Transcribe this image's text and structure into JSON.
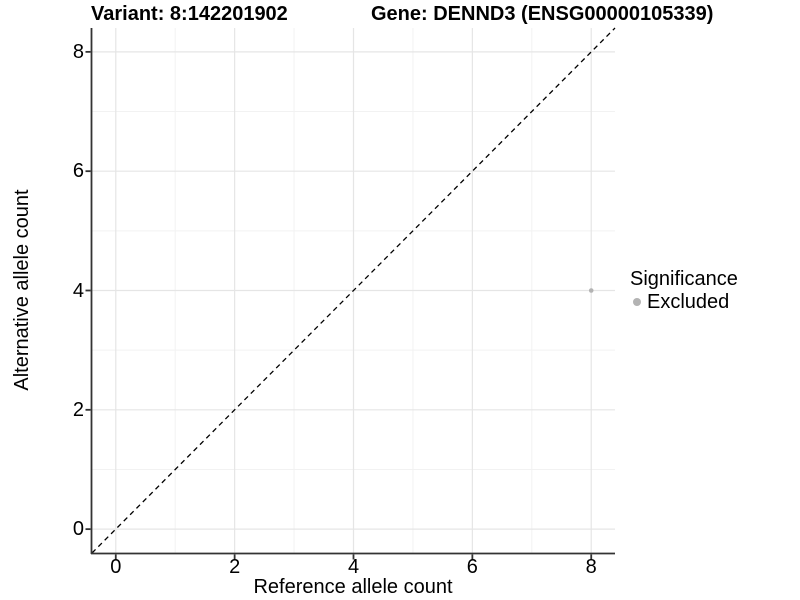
{
  "chart_data": {
    "type": "scatter",
    "title_left": "Variant: 8:142201902",
    "title_right": "Gene: DENND3 (ENSG00000105339)",
    "xlabel": "Reference allele count",
    "ylabel": "Alternative allele count",
    "xlim": [
      -0.4,
      8.4
    ],
    "ylim": [
      -0.4,
      8.4
    ],
    "x_major_ticks": [
      0,
      2,
      4,
      6,
      8
    ],
    "y_major_ticks": [
      0,
      2,
      4,
      6,
      8
    ],
    "x_minor_ticks": [
      1,
      3,
      5,
      7
    ],
    "y_minor_ticks": [
      1,
      3,
      5,
      7
    ],
    "grid": "major and minor, light gray on white",
    "identity_line": {
      "slope": 1,
      "intercept": 0,
      "style": "dashed",
      "color": "#000000"
    },
    "series": [
      {
        "name": "Excluded",
        "color": "#b3b3b3",
        "points": [
          {
            "x": 8,
            "y": 4
          }
        ]
      }
    ],
    "legend": {
      "title": "Significance",
      "position": "right",
      "entries": [
        {
          "label": "Excluded",
          "color": "#b3b3b3"
        }
      ]
    },
    "colors": {
      "background": "#ffffff",
      "axis_line": "#333333",
      "tick_mark": "#333333",
      "grid_major": "#e5e5e5",
      "grid_minor": "#f2f2f2",
      "text": "#000000",
      "point": "#b3b3b3"
    }
  }
}
